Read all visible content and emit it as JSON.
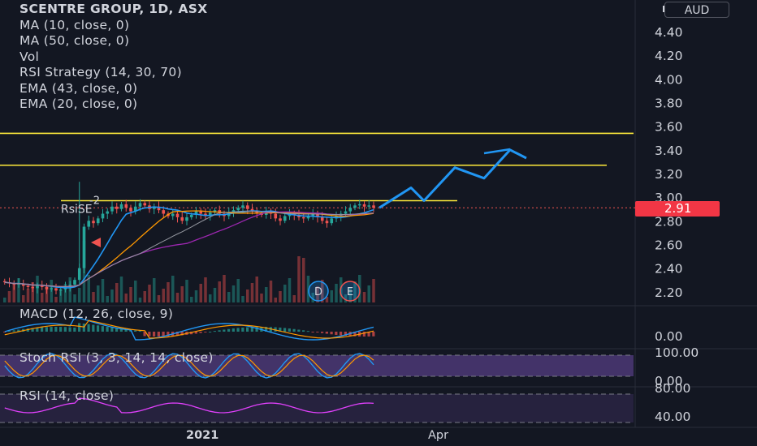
{
  "legend": {
    "title": "SCENTRE GROUP, 1D, ASX",
    "lines": [
      "MA (10, close, 0)",
      "MA (50, close, 0)",
      "Vol",
      "RSI Strategy (14, 30, 70)",
      "EMA (43, close, 0)",
      "EMA (20, close, 0)"
    ]
  },
  "currency": "AUD",
  "current_price": "2.91",
  "signal_label": "RsiSE",
  "signal_marker": "-2",
  "event_badges": [
    "D",
    "E"
  ],
  "panes": {
    "macd": "MACD (12, 26, close, 9)",
    "stoch": "Stoch RSI (3, 3, 14, 14, close)",
    "rsi": "RSI (14, close)"
  },
  "time_axis": {
    "labels": [
      "2021",
      "Apr"
    ]
  },
  "colors": {
    "up": "#26a69a",
    "down": "#ef5350",
    "ma10": "#2196f3",
    "ma50": "#ff9800",
    "ema": "#9c27b0",
    "level": "#ffeb3b",
    "projection": "#2196f3",
    "macd": "#2196f3",
    "signal": "#ff9800",
    "stochK": "#2196f3",
    "stochD": "#ff9800",
    "rsi": "#e040fb",
    "bg": "#131722"
  },
  "chart_data": [
    {
      "type": "line",
      "pane": "price",
      "yaxis_ticks": [
        "4.40",
        "4.20",
        "4.00",
        "3.80",
        "3.60",
        "3.40",
        "3.20",
        "3.00",
        "2.80",
        "2.60",
        "2.40",
        "2.20"
      ],
      "ylim": [
        2.1,
        4.55
      ],
      "price_close": [
        2.28,
        2.27,
        2.26,
        2.27,
        2.25,
        2.24,
        2.23,
        2.25,
        2.24,
        2.22,
        2.23,
        2.21,
        2.22,
        2.24,
        2.26,
        2.3,
        2.4,
        2.75,
        2.8,
        2.78,
        2.82,
        2.86,
        2.88,
        2.92,
        2.9,
        2.94,
        2.91,
        2.88,
        2.92,
        2.95,
        2.93,
        2.9,
        2.92,
        2.89,
        2.86,
        2.84,
        2.86,
        2.83,
        2.8,
        2.83,
        2.85,
        2.88,
        2.86,
        2.84,
        2.87,
        2.89,
        2.86,
        2.84,
        2.87,
        2.89,
        2.91,
        2.93,
        2.9,
        2.88,
        2.86,
        2.85,
        2.88,
        2.86,
        2.82,
        2.8,
        2.84,
        2.86,
        2.85,
        2.83,
        2.82,
        2.84,
        2.86,
        2.83,
        2.8,
        2.78,
        2.82,
        2.84,
        2.86,
        2.88,
        2.91,
        2.93,
        2.94,
        2.92,
        2.93,
        2.91
      ],
      "horizontal_levels": [
        3.54,
        3.27,
        2.97
      ],
      "projection_path": [
        [
          2.91,
          0
        ],
        [
          3.08,
          1
        ],
        [
          2.97,
          2
        ],
        [
          3.25,
          3
        ],
        [
          3.16,
          4
        ],
        [
          3.4,
          5
        ],
        [
          3.33,
          6
        ]
      ]
    },
    {
      "type": "line",
      "pane": "macd",
      "title": "MACD (12, 26, close, 9)",
      "yaxis_ticks": [
        "0.00"
      ]
    },
    {
      "type": "line",
      "pane": "stoch",
      "title": "Stoch RSI (3, 3, 14, 14, close)",
      "yaxis_ticks": [
        "100.00",
        "0.00"
      ]
    },
    {
      "type": "line",
      "pane": "rsi",
      "title": "RSI (14, close)",
      "yaxis_ticks": [
        "80.00",
        "40.00"
      ]
    }
  ]
}
